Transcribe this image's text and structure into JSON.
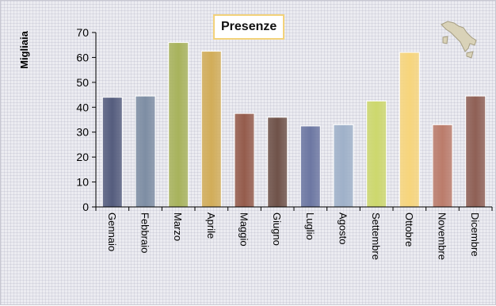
{
  "chart_data": {
    "type": "bar",
    "title": "Presenze",
    "ylabel": "Migliaia",
    "xlabel": "",
    "ylim": [
      0,
      70
    ],
    "yticks": [
      0,
      10,
      20,
      30,
      40,
      50,
      60,
      70
    ],
    "grid": false,
    "legend": "none",
    "categories": [
      "Gennaio",
      "Febbraio",
      "Marzo",
      "Aprile",
      "Maggio",
      "Giugno",
      "Luglio",
      "Agosto",
      "Settembre",
      "Ottobre",
      "Novembre",
      "Dicembre"
    ],
    "values": [
      44,
      44.5,
      66,
      62.5,
      37.5,
      36,
      32.5,
      33,
      42.5,
      62,
      33,
      44.5
    ],
    "colors": [
      "#555d7e",
      "#7e8ea4",
      "#a8b35c",
      "#d2ad59",
      "#955c4c",
      "#6f5249",
      "#6c77a2",
      "#9fb1c9",
      "#cdd86d",
      "#f7d57c",
      "#bb7c6b",
      "#8f6055"
    ]
  },
  "logo": {
    "icon": "italy-map-icon"
  }
}
